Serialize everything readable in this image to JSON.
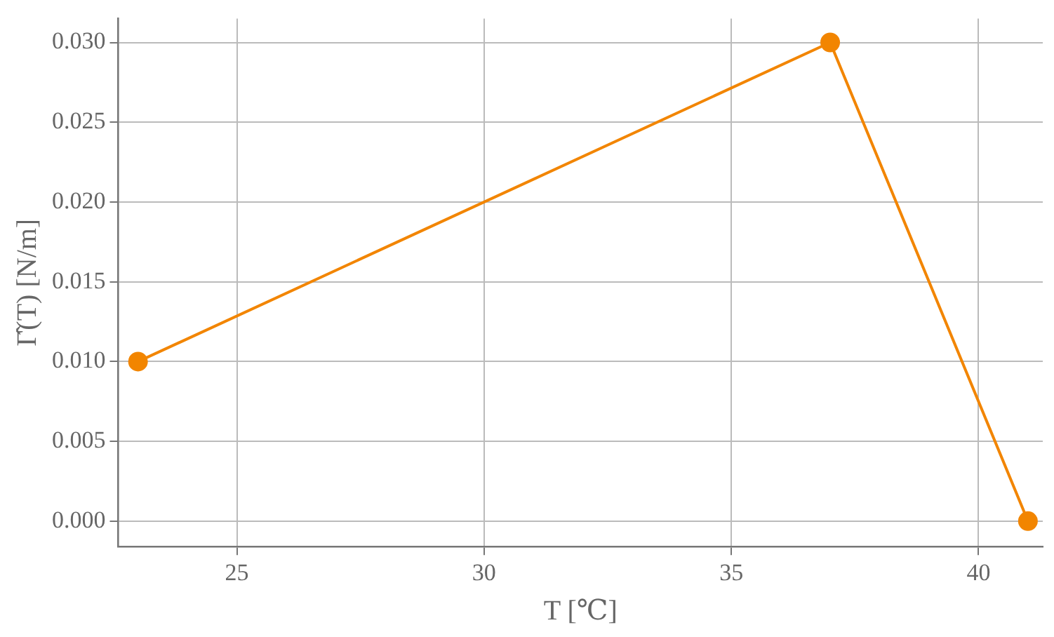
{
  "chart_data": {
    "type": "line",
    "xlabel": "T [℃]",
    "ylabel": "Γ̂(T) [N/m]",
    "x": [
      23,
      37,
      41
    ],
    "series": [
      {
        "color": "#f28500",
        "values": [
          0.01,
          0.03,
          0.0
        ]
      }
    ],
    "xlim": [
      22.6,
      41.3
    ],
    "ylim": [
      -0.0016,
      0.0315
    ],
    "xticks": [
      25,
      30,
      35,
      40
    ],
    "yticks": [
      {
        "value": 0,
        "label": "0.000"
      },
      {
        "value": 0.005,
        "label": "0.005"
      },
      {
        "value": 0.01,
        "label": "0.010"
      },
      {
        "value": 0.015,
        "label": "0.015"
      },
      {
        "value": 0.02,
        "label": "0.020"
      },
      {
        "value": 0.025,
        "label": "0.025"
      },
      {
        "value": 0.03,
        "label": "0.030"
      }
    ],
    "grid": true,
    "marker": "circle",
    "line_style": "solid",
    "legend": false
  }
}
